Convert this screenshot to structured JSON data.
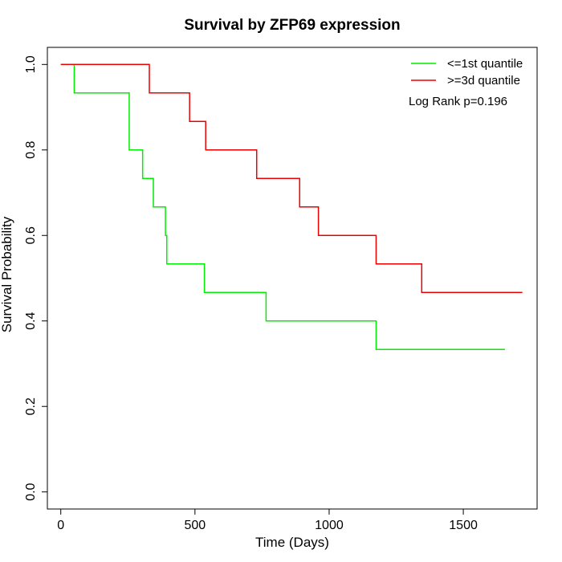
{
  "chart_data": {
    "type": "line",
    "title": "Survival by ZFP69 expression",
    "xlabel": "Time (Days)",
    "ylabel": "Survival Probability",
    "xlim": [
      -50,
      1775
    ],
    "ylim": [
      -0.04,
      1.04
    ],
    "xticks": [
      0,
      500,
      1000,
      1500
    ],
    "yticks": [
      0.0,
      0.2,
      0.4,
      0.6,
      0.8,
      1.0
    ],
    "xtick_labels": [
      "0",
      "500",
      "1000",
      "1500"
    ],
    "ytick_labels": [
      "0.0",
      "0.2",
      "0.4",
      "0.6",
      "0.8",
      "1.0"
    ],
    "grid": false,
    "legend_position": "top-right",
    "annotation": "Log Rank p=0.196",
    "series": [
      {
        "name": "<=1st quantile",
        "color": "#00ee00",
        "step_times": [
          0,
          50,
          255,
          305,
          345,
          390,
          395,
          535,
          765,
          1175,
          1655
        ],
        "step_values": [
          1.0,
          0.9333,
          0.8,
          0.7333,
          0.6667,
          0.6,
          0.5333,
          0.4667,
          0.4,
          0.3333,
          0.3333
        ]
      },
      {
        "name": ">=3d quantile",
        "color": "#ee0000",
        "step_times": [
          0,
          330,
          480,
          540,
          730,
          890,
          960,
          1175,
          1345,
          1720
        ],
        "step_values": [
          1.0,
          0.9333,
          0.8667,
          0.8,
          0.7333,
          0.6667,
          0.6,
          0.5333,
          0.4667,
          0.4667
        ]
      }
    ]
  }
}
